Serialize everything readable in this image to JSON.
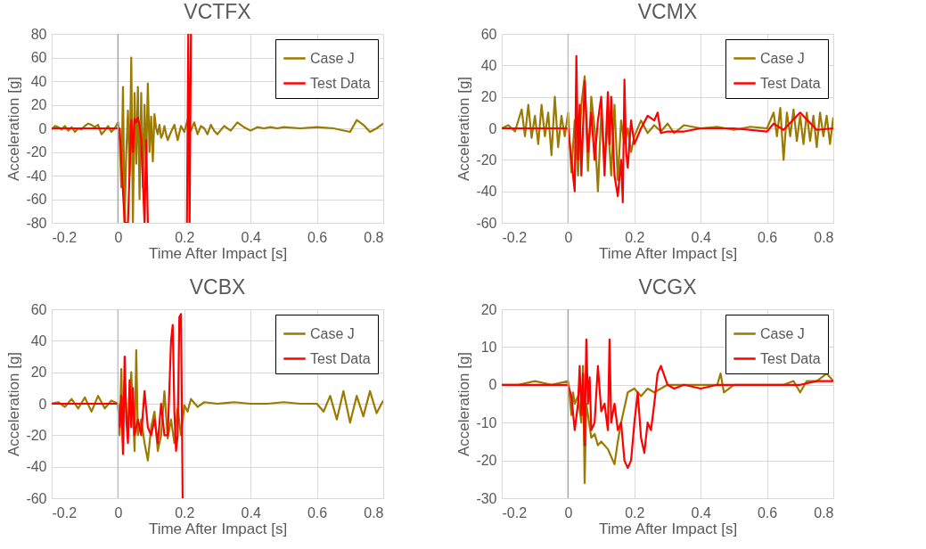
{
  "chart_data": [
    {
      "type": "line",
      "title": "VCTFX",
      "xlabel": "Time After Impact [s]",
      "ylabel": "Acceleration [g]",
      "xlim": [
        -0.2,
        0.8
      ],
      "xticks": [
        -0.2,
        0,
        0.2,
        0.4,
        0.6,
        0.8
      ],
      "ylim": [
        -80,
        80
      ],
      "yticks": [
        -80,
        -60,
        -40,
        -20,
        0,
        20,
        40,
        60,
        80
      ],
      "grid": true,
      "legend": "top right",
      "ref_lines": [
        {
          "axis": "x",
          "value": 0,
          "color": "#a6a6a6"
        }
      ],
      "series": [
        {
          "name": "Case J",
          "color": "#9c7a00",
          "x": [
            -0.2,
            -0.19,
            -0.18,
            -0.17,
            -0.16,
            -0.15,
            -0.14,
            -0.13,
            -0.12,
            -0.11,
            -0.1,
            -0.09,
            -0.08,
            -0.07,
            -0.06,
            -0.05,
            -0.04,
            -0.03,
            -0.02,
            -0.01,
            0,
            0.005,
            0.01,
            0.015,
            0.02,
            0.025,
            0.03,
            0.035,
            0.04,
            0.045,
            0.05,
            0.055,
            0.06,
            0.065,
            0.07,
            0.075,
            0.08,
            0.085,
            0.09,
            0.095,
            0.1,
            0.105,
            0.11,
            0.115,
            0.12,
            0.125,
            0.13,
            0.135,
            0.14,
            0.145,
            0.15,
            0.16,
            0.17,
            0.18,
            0.19,
            0.2,
            0.21,
            0.22,
            0.23,
            0.24,
            0.25,
            0.26,
            0.27,
            0.28,
            0.29,
            0.3,
            0.32,
            0.34,
            0.36,
            0.38,
            0.4,
            0.42,
            0.44,
            0.46,
            0.48,
            0.5,
            0.55,
            0.6,
            0.65,
            0.7,
            0.72,
            0.74,
            0.76,
            0.78,
            0.8
          ],
          "values": [
            -1,
            2,
            1,
            -1,
            2,
            -2,
            1,
            -3,
            0,
            -1,
            2,
            4,
            3,
            1,
            3,
            -5,
            -2,
            2,
            -3,
            0,
            5,
            -10,
            -50,
            35,
            -80,
            -20,
            15,
            -40,
            60,
            -80,
            30,
            -30,
            35,
            -60,
            30,
            -50,
            20,
            -30,
            38,
            -20,
            10,
            -28,
            12,
            0,
            -5,
            3,
            -8,
            -5,
            2,
            -5,
            -10,
            -3,
            3,
            -10,
            2,
            -3,
            7,
            -2,
            5,
            -5,
            2,
            0,
            -5,
            3,
            -2,
            -5,
            2,
            -2,
            5,
            1,
            -2,
            1,
            0,
            1,
            0,
            1,
            0,
            1,
            0,
            -3,
            7,
            3,
            -3,
            0,
            4
          ]
        },
        {
          "name": "Test Data",
          "color": "#ff0000",
          "x": [
            -0.2,
            0,
            0.005,
            0.02,
            0.03,
            0.04,
            0.045,
            0.05,
            0.055,
            0.06,
            0.065,
            0.07,
            0.08,
            0.085,
            0.09,
            0.15,
            0.208,
            0.212,
            0.216,
            0.22
          ],
          "values": [
            0,
            0,
            0,
            -80,
            -80,
            7,
            -20,
            8,
            5,
            9,
            2,
            -10,
            -80,
            -10,
            -80,
            null,
            -80,
            80,
            -80,
            80
          ]
        }
      ]
    },
    {
      "type": "line",
      "title": "VCMX",
      "xlabel": "Time After Impact [s]",
      "ylabel": "Acceleration [g]",
      "xlim": [
        -0.2,
        0.8
      ],
      "xticks": [
        -0.2,
        0,
        0.2,
        0.4,
        0.6,
        0.8
      ],
      "ylim": [
        -60,
        60
      ],
      "yticks": [
        -60,
        -40,
        -20,
        0,
        20,
        40,
        60
      ],
      "grid": true,
      "legend": "top right",
      "ref_lines": [
        {
          "axis": "x",
          "value": 0,
          "color": "#bfbfbf"
        }
      ],
      "series": [
        {
          "name": "Case J",
          "color": "#9c7a00",
          "x": [
            -0.2,
            -0.18,
            -0.16,
            -0.14,
            -0.13,
            -0.12,
            -0.11,
            -0.1,
            -0.09,
            -0.08,
            -0.07,
            -0.06,
            -0.05,
            -0.04,
            -0.03,
            -0.02,
            -0.01,
            0,
            0.01,
            0.02,
            0.03,
            0.04,
            0.05,
            0.06,
            0.07,
            0.08,
            0.09,
            0.1,
            0.11,
            0.12,
            0.13,
            0.14,
            0.15,
            0.16,
            0.17,
            0.18,
            0.19,
            0.2,
            0.22,
            0.24,
            0.26,
            0.28,
            0.3,
            0.32,
            0.35,
            0.4,
            0.45,
            0.5,
            0.55,
            0.6,
            0.62,
            0.63,
            0.64,
            0.65,
            0.66,
            0.67,
            0.68,
            0.69,
            0.7,
            0.71,
            0.72,
            0.73,
            0.74,
            0.75,
            0.76,
            0.77,
            0.78,
            0.79,
            0.8
          ],
          "values": [
            0,
            2,
            -2,
            12,
            -5,
            15,
            -6,
            8,
            -10,
            15,
            -5,
            10,
            -17,
            20,
            -12,
            8,
            -5,
            10,
            -28,
            5,
            -30,
            15,
            33,
            -27,
            20,
            0,
            -40,
            10,
            -20,
            5,
            -30,
            15,
            -33,
            5,
            -10,
            0,
            -15,
            -5,
            5,
            -3,
            2,
            -2,
            3,
            -3,
            2,
            0,
            1,
            -1,
            1,
            0,
            10,
            -5,
            13,
            -20,
            10,
            -5,
            12,
            -8,
            8,
            -10,
            10,
            -8,
            8,
            -12,
            10,
            -5,
            8,
            -10,
            7
          ]
        },
        {
          "name": "Test Data",
          "color": "#ff0000",
          "x": [
            -0.2,
            0,
            0.01,
            0.02,
            0.025,
            0.03,
            0.035,
            0.04,
            0.05,
            0.06,
            0.07,
            0.08,
            0.09,
            0.1,
            0.11,
            0.12,
            0.125,
            0.13,
            0.14,
            0.15,
            0.16,
            0.165,
            0.17,
            0.175,
            0.18,
            0.19,
            0.2,
            0.22,
            0.24,
            0.26,
            0.27,
            0.28,
            0.3,
            0.35,
            0.4,
            0.5,
            0.6,
            0.62,
            0.65,
            0.7,
            0.75,
            0.8
          ],
          "values": [
            0,
            0,
            -20,
            -40,
            46,
            -20,
            15,
            -30,
            30,
            -15,
            10,
            -20,
            5,
            20,
            -30,
            23,
            -10,
            20,
            -30,
            -43,
            -20,
            -47,
            31,
            -15,
            -25,
            5,
            -10,
            0,
            8,
            5,
            10,
            -3,
            -2,
            -2,
            0,
            0,
            -2,
            3,
            -1,
            10,
            -1,
            0
          ]
        }
      ]
    },
    {
      "type": "line",
      "title": "VCBX",
      "xlabel": "Time After Impact [s]",
      "ylabel": "Acceleration [g]",
      "xlim": [
        -0.2,
        0.8
      ],
      "xticks": [
        -0.2,
        0,
        0.2,
        0.4,
        0.6,
        0.8
      ],
      "ylim": [
        -60,
        60
      ],
      "yticks": [
        -60,
        -40,
        -20,
        0,
        20,
        40,
        60
      ],
      "grid": true,
      "legend": "top right",
      "ref_lines": [
        {
          "axis": "x",
          "value": 0,
          "color": "#bfbfbf"
        }
      ],
      "series": [
        {
          "name": "Case J",
          "color": "#9c7a00",
          "x": [
            -0.2,
            -0.18,
            -0.16,
            -0.14,
            -0.12,
            -0.1,
            -0.08,
            -0.06,
            -0.04,
            -0.02,
            0,
            0.005,
            0.01,
            0.015,
            0.02,
            0.03,
            0.04,
            0.05,
            0.055,
            0.06,
            0.07,
            0.08,
            0.09,
            0.1,
            0.11,
            0.12,
            0.13,
            0.14,
            0.15,
            0.16,
            0.17,
            0.18,
            0.19,
            0.2,
            0.21,
            0.22,
            0.24,
            0.26,
            0.3,
            0.35,
            0.4,
            0.45,
            0.5,
            0.55,
            0.6,
            0.62,
            0.64,
            0.66,
            0.68,
            0.7,
            0.72,
            0.74,
            0.76,
            0.78,
            0.8
          ],
          "values": [
            0,
            1,
            -2,
            3,
            -3,
            4,
            -5,
            5,
            -3,
            2,
            0,
            -20,
            22,
            -25,
            15,
            -20,
            20,
            -30,
            34,
            -20,
            -10,
            -25,
            -36,
            -15,
            -5,
            -30,
            -20,
            8,
            -22,
            -10,
            -25,
            -3,
            -20,
            -1,
            -5,
            3,
            -2,
            1,
            0,
            1,
            0,
            0,
            1,
            0,
            0,
            -5,
            5,
            -10,
            8,
            -12,
            5,
            -8,
            8,
            -6,
            2
          ]
        },
        {
          "name": "Test Data",
          "color": "#ff0000",
          "x": [
            -0.2,
            0,
            0.005,
            0.01,
            0.015,
            0.02,
            0.025,
            0.03,
            0.035,
            0.04,
            0.045,
            0.05,
            0.06,
            0.07,
            0.08,
            0.09,
            0.1,
            0.11,
            0.12,
            0.13,
            0.14,
            0.15,
            0.16,
            0.165,
            0.17,
            0.175,
            0.18,
            0.185,
            0.19,
            0.195
          ],
          "values": [
            0,
            0,
            -15,
            5,
            -32,
            30,
            -10,
            -25,
            15,
            -15,
            10,
            -20,
            -10,
            -20,
            8,
            -15,
            -20,
            -10,
            -25,
            0,
            -20,
            -20,
            40,
            50,
            -5,
            -30,
            -20,
            55,
            57,
            -60
          ]
        }
      ]
    },
    {
      "type": "line",
      "title": "VCGX",
      "xlabel": "Time After Impact [s]",
      "ylabel": "Acceleration [g]",
      "xlim": [
        -0.2,
        0.8
      ],
      "xticks": [
        -0.2,
        0,
        0.2,
        0.4,
        0.6,
        0.8
      ],
      "ylim": [
        -30,
        20
      ],
      "yticks": [
        -30,
        -20,
        -10,
        0,
        10,
        20
      ],
      "grid": true,
      "legend": "top right",
      "ref_lines": [
        {
          "axis": "x",
          "value": 0,
          "color": "#a6a6a6"
        }
      ],
      "series": [
        {
          "name": "Case J",
          "color": "#9c7a00",
          "x": [
            -0.2,
            -0.15,
            -0.1,
            -0.05,
            0,
            0.005,
            0.01,
            0.015,
            0.02,
            0.03,
            0.04,
            0.045,
            0.05,
            0.055,
            0.06,
            0.07,
            0.08,
            0.09,
            0.1,
            0.12,
            0.14,
            0.15,
            0.16,
            0.18,
            0.2,
            0.22,
            0.24,
            0.26,
            0.28,
            0.3,
            0.35,
            0.4,
            0.45,
            0.46,
            0.47,
            0.5,
            0.55,
            0.6,
            0.65,
            0.68,
            0.7,
            0.72,
            0.75,
            0.78,
            0.8
          ],
          "values": [
            0,
            0,
            1,
            0,
            1,
            -3,
            -8,
            -2,
            -5,
            -3,
            -10,
            5,
            -26,
            -5,
            -8,
            -14,
            -13,
            -16,
            -15,
            -17,
            -21,
            -15,
            -10,
            -2,
            -1,
            -3,
            -1,
            -2,
            -1,
            0,
            0,
            0,
            0,
            3,
            -2,
            0,
            0,
            0,
            0,
            1,
            -2,
            1,
            1,
            3,
            1
          ]
        },
        {
          "name": "Test Data",
          "color": "#ff0000",
          "x": [
            -0.2,
            0,
            0.01,
            0.02,
            0.03,
            0.035,
            0.04,
            0.045,
            0.05,
            0.055,
            0.06,
            0.065,
            0.07,
            0.08,
            0.09,
            0.1,
            0.11,
            0.12,
            0.125,
            0.13,
            0.14,
            0.15,
            0.16,
            0.17,
            0.18,
            0.19,
            0.2,
            0.21,
            0.22,
            0.23,
            0.24,
            0.25,
            0.26,
            0.27,
            0.28,
            0.3,
            0.32,
            0.35,
            0.4,
            0.45,
            0.5,
            0.6,
            0.7,
            0.75,
            0.8
          ],
          "values": [
            0,
            0,
            -3,
            -12,
            -5,
            5,
            -8,
            3,
            -16,
            12,
            -5,
            2,
            -12,
            -10,
            5,
            -7,
            -5,
            -12,
            12,
            -10,
            -5,
            -12,
            -10,
            -20,
            -22,
            -20,
            -10,
            -2,
            -14,
            -18,
            -10,
            -12,
            -5,
            3,
            5,
            0,
            -1,
            0,
            -1,
            0,
            0,
            0,
            0,
            1,
            1
          ]
        }
      ]
    }
  ]
}
